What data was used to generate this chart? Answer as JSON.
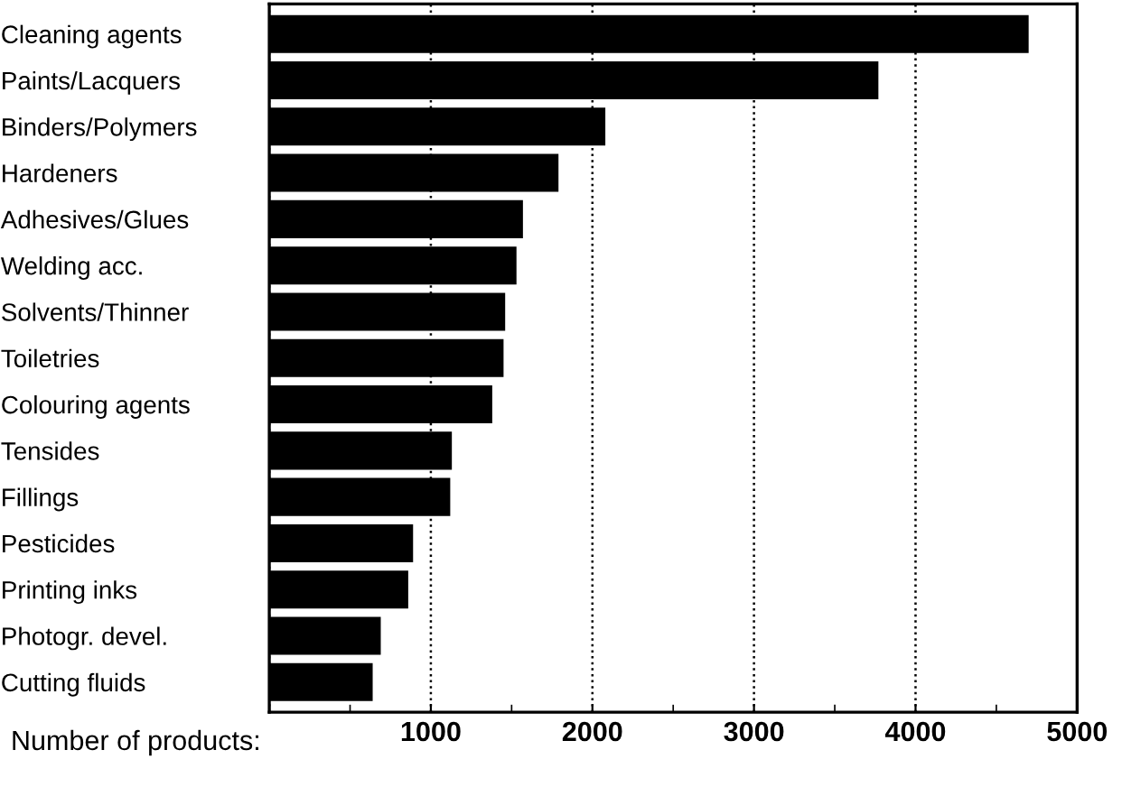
{
  "chart_data": {
    "type": "bar",
    "orientation": "horizontal",
    "xlabel": "Number of products:",
    "categories": [
      "Cleaning agents",
      "Paints/Lacquers",
      "Binders/Polymers",
      "Hardeners",
      "Adhesives/Glues",
      "Welding acc.",
      "Solvents/Thinner",
      "Toiletries",
      "Colouring agents",
      "Tensides",
      "Fillings",
      "Pesticides",
      "Printing inks",
      "Photogr. devel.",
      "Cutting fluids"
    ],
    "values": [
      4700,
      3770,
      2080,
      1790,
      1570,
      1530,
      1460,
      1450,
      1380,
      1130,
      1120,
      890,
      860,
      690,
      640
    ],
    "color": "#000000",
    "xlim": [
      0,
      5000
    ],
    "xticks": [
      {
        "value": 0,
        "label": null
      },
      1000,
      2000,
      3000,
      4000,
      5000
    ],
    "grid": "x",
    "legend": false
  }
}
